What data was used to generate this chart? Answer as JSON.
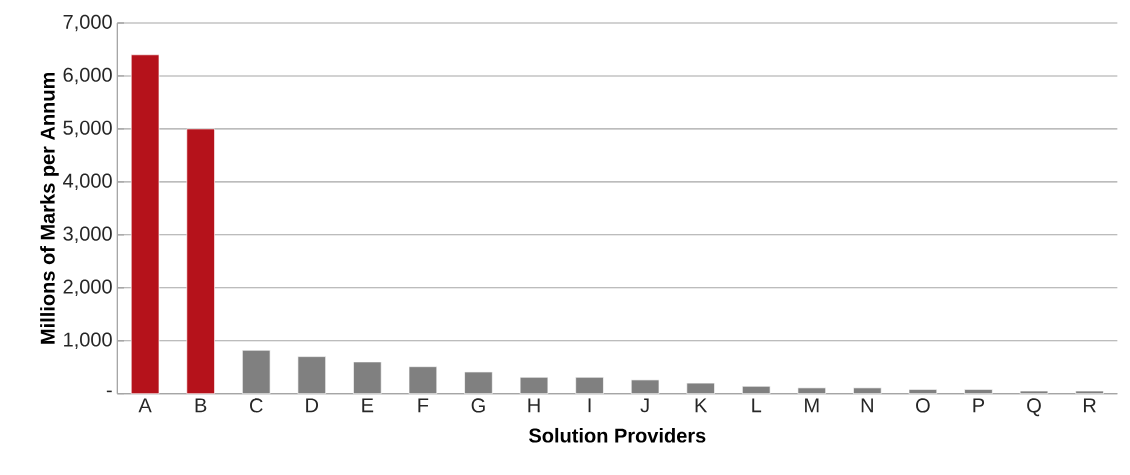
{
  "chart_data": {
    "type": "bar",
    "xlabel": "Solution Providers",
    "ylabel": "Millions of Marks per Annum",
    "categories": [
      "A",
      "B",
      "C",
      "D",
      "E",
      "F",
      "G",
      "H",
      "I",
      "J",
      "K",
      "L",
      "M",
      "N",
      "O",
      "P",
      "Q",
      "R"
    ],
    "values": [
      6400,
      5000,
      820,
      700,
      600,
      510,
      410,
      310,
      310,
      260,
      200,
      140,
      110,
      110,
      80,
      80,
      50,
      50
    ],
    "colors": [
      "#b5121b",
      "#b5121b",
      "#808080",
      "#808080",
      "#808080",
      "#808080",
      "#808080",
      "#808080",
      "#808080",
      "#808080",
      "#808080",
      "#808080",
      "#808080",
      "#808080",
      "#808080",
      "#808080",
      "#808080",
      "#808080"
    ],
    "ylim": [
      0,
      7000
    ],
    "yticks": [
      {
        "value": 0,
        "label": "-"
      },
      {
        "value": 1000,
        "label": "1,000"
      },
      {
        "value": 2000,
        "label": "2,000"
      },
      {
        "value": 3000,
        "label": "3,000"
      },
      {
        "value": 4000,
        "label": "4,000"
      },
      {
        "value": 5000,
        "label": "5,000"
      },
      {
        "value": 6000,
        "label": "6,000"
      },
      {
        "value": 7000,
        "label": "7,000"
      }
    ],
    "grid": "y"
  }
}
